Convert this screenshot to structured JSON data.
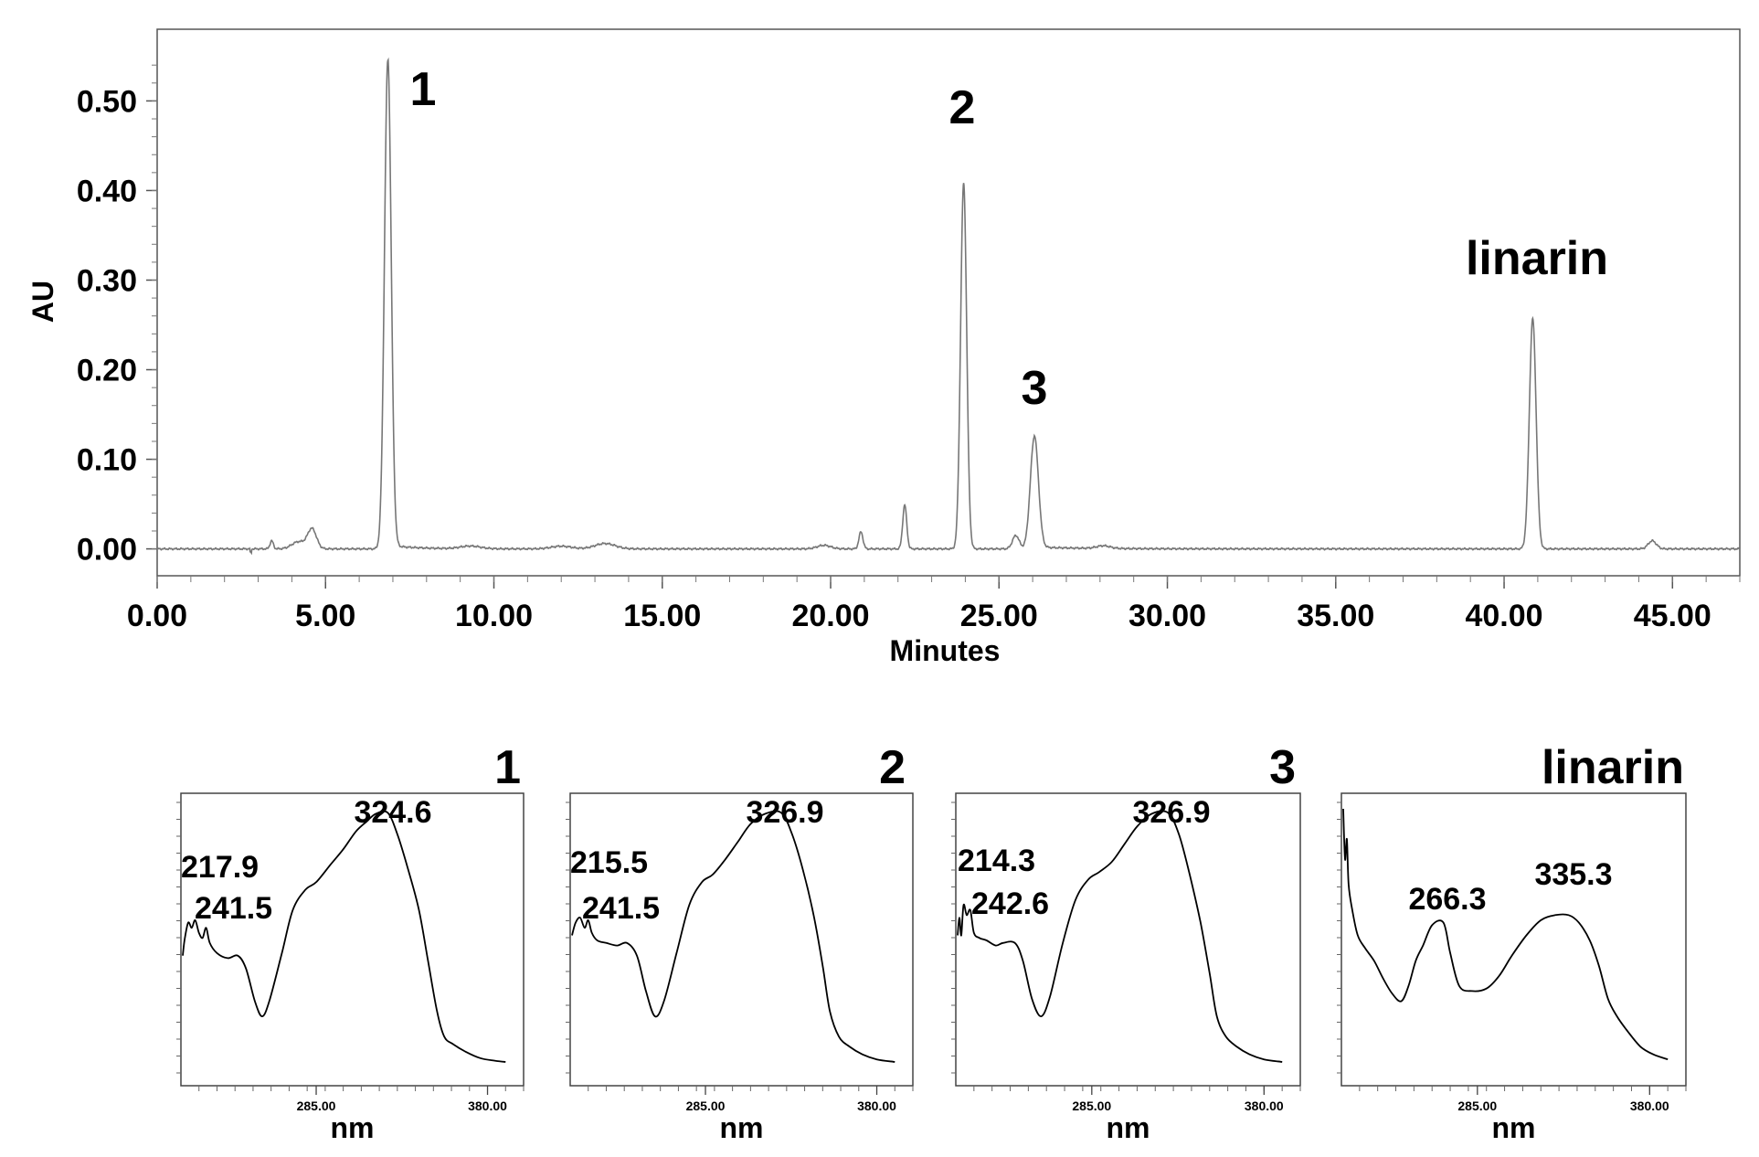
{
  "chart_data": [
    {
      "type": "line",
      "xlabel": "Minutes",
      "ylabel": "AU",
      "xlim": [
        0,
        47
      ],
      "ylim": [
        -0.03,
        0.58
      ],
      "x_ticks": [
        "0.00",
        "5.00",
        "10.00",
        "15.00",
        "20.00",
        "25.00",
        "30.00",
        "35.00",
        "40.00",
        "45.00"
      ],
      "y_ticks": [
        "0.00",
        "0.10",
        "0.20",
        "0.30",
        "0.40",
        "0.50"
      ],
      "grid": false,
      "line_color": "#777777",
      "peaks": [
        {
          "x": 3.4,
          "y": 0.009,
          "w": 0.05
        },
        {
          "x": 4.6,
          "y": 0.022,
          "w": 0.13
        },
        {
          "x": 4.2,
          "y": 0.008,
          "w": 0.2
        },
        {
          "x": 6.85,
          "y": 0.545,
          "w": 0.1
        },
        {
          "x": 9.3,
          "y": 0.003,
          "w": 0.3
        },
        {
          "x": 12.0,
          "y": 0.003,
          "w": 0.3
        },
        {
          "x": 13.3,
          "y": 0.006,
          "w": 0.3
        },
        {
          "x": 19.8,
          "y": 0.004,
          "w": 0.2
        },
        {
          "x": 20.9,
          "y": 0.019,
          "w": 0.06
        },
        {
          "x": 22.2,
          "y": 0.049,
          "w": 0.06
        },
        {
          "x": 23.95,
          "y": 0.408,
          "w": 0.09
        },
        {
          "x": 25.5,
          "y": 0.015,
          "w": 0.1
        },
        {
          "x": 26.05,
          "y": 0.125,
          "w": 0.12
        },
        {
          "x": 28.1,
          "y": 0.003,
          "w": 0.2
        },
        {
          "x": 40.85,
          "y": 0.257,
          "w": 0.1
        },
        {
          "x": 44.4,
          "y": 0.009,
          "w": 0.12
        }
      ],
      "annotations": [
        {
          "text": "1",
          "x": 6.85
        },
        {
          "text": "2",
          "x": 23.95
        },
        {
          "text": "3",
          "x": 26.05
        },
        {
          "text": "linarin",
          "x": 40.85
        }
      ]
    },
    {
      "type": "line",
      "title": "1",
      "xlabel": "nm",
      "x_ticks": [
        "285.00",
        "380.00"
      ],
      "xlim": [
        210,
        400
      ],
      "curve": [
        [
          211,
          0.42
        ],
        [
          212,
          0.48
        ],
        [
          214,
          0.55
        ],
        [
          216,
          0.53
        ],
        [
          217.9,
          0.56
        ],
        [
          220,
          0.51
        ],
        [
          222,
          0.49
        ],
        [
          224,
          0.53
        ],
        [
          226,
          0.47
        ],
        [
          230,
          0.43
        ],
        [
          236,
          0.41
        ],
        [
          241.5,
          0.42
        ],
        [
          246,
          0.37
        ],
        [
          251,
          0.24
        ],
        [
          255,
          0.18
        ],
        [
          259,
          0.24
        ],
        [
          266,
          0.43
        ],
        [
          272,
          0.6
        ],
        [
          279,
          0.68
        ],
        [
          285,
          0.71
        ],
        [
          293,
          0.78
        ],
        [
          300,
          0.84
        ],
        [
          307,
          0.91
        ],
        [
          313,
          0.95
        ],
        [
          318,
          0.98
        ],
        [
          324.6,
          0.985
        ],
        [
          330,
          0.9
        ],
        [
          336,
          0.76
        ],
        [
          342,
          0.6
        ],
        [
          347,
          0.4
        ],
        [
          352,
          0.2
        ],
        [
          356,
          0.1
        ],
        [
          361,
          0.07
        ],
        [
          368,
          0.04
        ],
        [
          376,
          0.015
        ],
        [
          384,
          0.005
        ],
        [
          390,
          0.0
        ]
      ],
      "annotations": [
        "217.9",
        "241.5",
        "324.6"
      ]
    },
    {
      "type": "line",
      "title": "2",
      "xlabel": "nm",
      "x_ticks": [
        "285.00",
        "380.00"
      ],
      "xlim": [
        210,
        400
      ],
      "curve": [
        [
          211,
          0.5
        ],
        [
          213,
          0.55
        ],
        [
          215.5,
          0.57
        ],
        [
          218,
          0.53
        ],
        [
          220,
          0.56
        ],
        [
          222,
          0.51
        ],
        [
          225,
          0.48
        ],
        [
          230,
          0.47
        ],
        [
          236,
          0.46
        ],
        [
          241.5,
          0.47
        ],
        [
          247,
          0.42
        ],
        [
          252,
          0.28
        ],
        [
          257,
          0.18
        ],
        [
          262,
          0.24
        ],
        [
          269,
          0.43
        ],
        [
          276,
          0.62
        ],
        [
          283,
          0.71
        ],
        [
          289,
          0.74
        ],
        [
          296,
          0.8
        ],
        [
          303,
          0.87
        ],
        [
          310,
          0.94
        ],
        [
          318,
          0.98
        ],
        [
          326.9,
          0.985
        ],
        [
          333,
          0.9
        ],
        [
          339,
          0.76
        ],
        [
          345,
          0.58
        ],
        [
          350,
          0.38
        ],
        [
          354,
          0.2
        ],
        [
          359,
          0.1
        ],
        [
          365,
          0.06
        ],
        [
          372,
          0.03
        ],
        [
          380,
          0.01
        ],
        [
          390,
          0.0
        ]
      ],
      "annotations": [
        "215.5",
        "241.5",
        "326.9"
      ]
    },
    {
      "type": "line",
      "title": "3",
      "xlabel": "nm",
      "x_ticks": [
        "285.00",
        "380.00"
      ],
      "xlim": [
        210,
        400
      ],
      "curve": [
        [
          211,
          0.5
        ],
        [
          212,
          0.57
        ],
        [
          213,
          0.5
        ],
        [
          214.3,
          0.62
        ],
        [
          216,
          0.58
        ],
        [
          218,
          0.6
        ],
        [
          220,
          0.51
        ],
        [
          223,
          0.49
        ],
        [
          227,
          0.48
        ],
        [
          232,
          0.46
        ],
        [
          236,
          0.47
        ],
        [
          242.6,
          0.47
        ],
        [
          247,
          0.4
        ],
        [
          252,
          0.25
        ],
        [
          257,
          0.18
        ],
        [
          262,
          0.26
        ],
        [
          269,
          0.47
        ],
        [
          276,
          0.64
        ],
        [
          283,
          0.72
        ],
        [
          289,
          0.75
        ],
        [
          296,
          0.79
        ],
        [
          303,
          0.86
        ],
        [
          310,
          0.93
        ],
        [
          318,
          0.98
        ],
        [
          326.9,
          0.985
        ],
        [
          333,
          0.9
        ],
        [
          339,
          0.74
        ],
        [
          345,
          0.55
        ],
        [
          350,
          0.35
        ],
        [
          354,
          0.18
        ],
        [
          359,
          0.1
        ],
        [
          365,
          0.06
        ],
        [
          372,
          0.03
        ],
        [
          380,
          0.01
        ],
        [
          390,
          0.0
        ]
      ],
      "annotations": [
        "214.3",
        "242.6",
        "326.9"
      ]
    },
    {
      "type": "line",
      "title": "linarin",
      "xlabel": "nm",
      "x_ticks": [
        "285.00",
        "380.00"
      ],
      "xlim": [
        210,
        400
      ],
      "curve": [
        [
          211,
          1.0
        ],
        [
          212,
          0.8
        ],
        [
          213,
          0.88
        ],
        [
          214,
          0.7
        ],
        [
          216,
          0.6
        ],
        [
          219,
          0.5
        ],
        [
          223,
          0.45
        ],
        [
          228,
          0.4
        ],
        [
          233,
          0.33
        ],
        [
          238,
          0.27
        ],
        [
          243,
          0.24
        ],
        [
          247,
          0.3
        ],
        [
          251,
          0.4
        ],
        [
          255,
          0.46
        ],
        [
          260,
          0.54
        ],
        [
          266.3,
          0.55
        ],
        [
          270,
          0.43
        ],
        [
          275,
          0.3
        ],
        [
          282,
          0.28
        ],
        [
          290,
          0.29
        ],
        [
          297,
          0.34
        ],
        [
          304,
          0.42
        ],
        [
          312,
          0.5
        ],
        [
          320,
          0.56
        ],
        [
          328,
          0.58
        ],
        [
          335.3,
          0.58
        ],
        [
          341,
          0.55
        ],
        [
          347,
          0.48
        ],
        [
          352,
          0.38
        ],
        [
          357,
          0.25
        ],
        [
          362,
          0.18
        ],
        [
          368,
          0.12
        ],
        [
          375,
          0.06
        ],
        [
          382,
          0.03
        ],
        [
          390,
          0.01
        ]
      ],
      "annotations": [
        "266.3",
        "335.3"
      ]
    }
  ]
}
